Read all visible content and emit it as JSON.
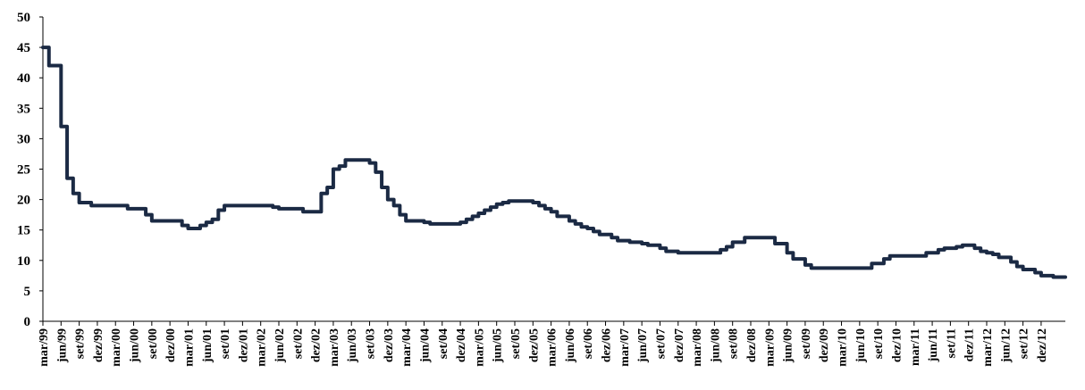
{
  "chart_data": {
    "type": "line",
    "title": "",
    "xlabel": "",
    "ylabel": "",
    "ylim": [
      0,
      50
    ],
    "yticks": [
      0,
      5,
      10,
      15,
      20,
      25,
      30,
      35,
      40,
      45,
      50
    ],
    "grid": false,
    "legend": "none",
    "line_color": "#1b2a44",
    "tick_labels": [
      "mar/99",
      "jun/99",
      "set/99",
      "dez/99",
      "mar/00",
      "jun/00",
      "set/00",
      "dez/00",
      "mar/01",
      "jun/01",
      "set/01",
      "dez/01",
      "mar/02",
      "jun/02",
      "set/02",
      "dez/02",
      "mar/03",
      "jun/03",
      "set/03",
      "dez/03",
      "mar/04",
      "jun/04",
      "set/04",
      "dez/04",
      "mar/05",
      "jun/05",
      "set/05",
      "dez/05",
      "mar/06",
      "jun/06",
      "set/06",
      "dez/06",
      "mar/07",
      "jun/07",
      "set/07",
      "dez/07",
      "mar/08",
      "jun/08",
      "set/08",
      "dez/08",
      "mar/09",
      "jun/09",
      "set/09",
      "dez/09",
      "mar/10",
      "jun/10",
      "set/10",
      "dez/10",
      "mar/11",
      "jun/11",
      "set/11",
      "dez/11",
      "mar/12",
      "jun/12",
      "set/12",
      "dez/12"
    ],
    "series": [
      {
        "values": [
          45,
          42,
          42,
          32,
          23.5,
          21,
          19.5,
          19.5,
          19,
          19,
          19,
          19,
          19,
          19,
          18.5,
          18.5,
          18.5,
          17.5,
          16.5,
          16.5,
          16.5,
          16.5,
          16.5,
          15.75,
          15.25,
          15.25,
          15.75,
          16.25,
          16.75,
          18.25,
          19,
          19,
          19,
          19,
          19,
          19,
          19,
          19,
          18.75,
          18.5,
          18.5,
          18.5,
          18.5,
          18,
          18,
          18,
          21,
          22,
          25,
          25.5,
          26.5,
          26.5,
          26.5,
          26.5,
          26,
          24.5,
          22,
          20,
          19,
          17.5,
          16.5,
          16.5,
          16.5,
          16.25,
          16,
          16,
          16,
          16,
          16,
          16.25,
          16.75,
          17.25,
          17.75,
          18.25,
          18.75,
          19.25,
          19.5,
          19.75,
          19.75,
          19.75,
          19.75,
          19.5,
          19,
          18.5,
          18,
          17.25,
          17.25,
          16.5,
          16,
          15.5,
          15.25,
          14.75,
          14.25,
          14.25,
          13.75,
          13.25,
          13.25,
          13,
          13,
          12.75,
          12.5,
          12.5,
          12,
          11.5,
          11.5,
          11.25,
          11.25,
          11.25,
          11.25,
          11.25,
          11.25,
          11.25,
          11.75,
          12.25,
          13,
          13,
          13.75,
          13.75,
          13.75,
          13.75,
          13.75,
          12.75,
          12.75,
          11.25,
          10.25,
          10.25,
          9.25,
          8.75,
          8.75,
          8.75,
          8.75,
          8.75,
          8.75,
          8.75,
          8.75,
          8.75,
          8.75,
          9.5,
          9.5,
          10.25,
          10.75,
          10.75,
          10.75,
          10.75,
          10.75,
          10.75,
          11.25,
          11.25,
          11.75,
          12,
          12,
          12.25,
          12.5,
          12.5,
          12,
          11.5,
          11.25,
          11,
          10.5,
          10.5,
          9.75,
          9,
          8.5,
          8.5,
          8,
          7.5,
          7.5,
          7.25,
          7.25,
          7.25
        ]
      }
    ]
  }
}
